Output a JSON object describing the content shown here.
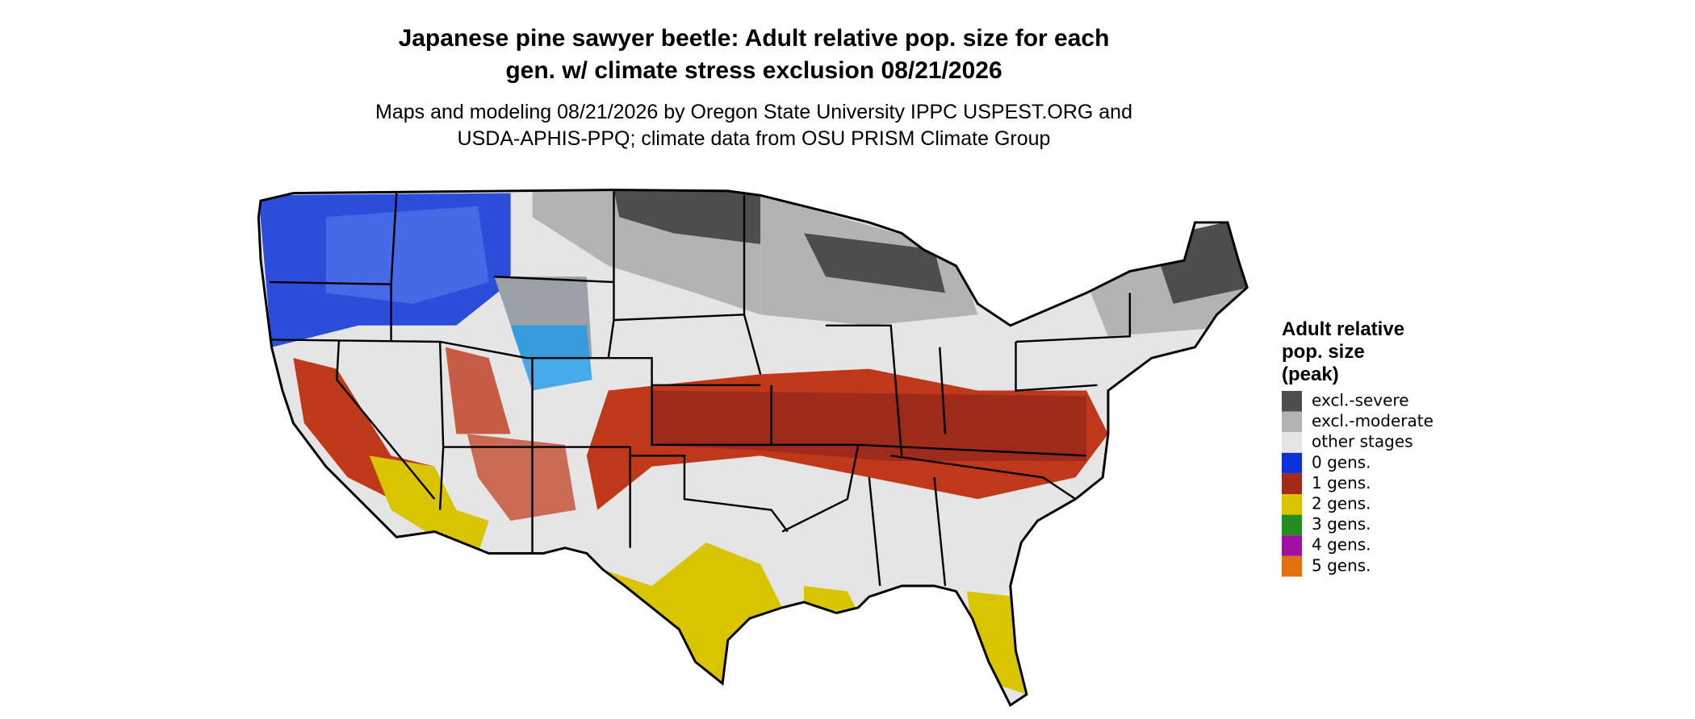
{
  "header": {
    "title_lines": [
      "Japanese pine sawyer beetle: Adult relative pop. size for each",
      "gen. w/ climate stress exclusion 08/21/2026"
    ],
    "subtitle_lines": [
      "Maps and modeling 08/21/2026 by Oregon State University IPPC USPEST.ORG and",
      "USDA-APHIS-PPQ; climate data from OSU PRISM Climate Group"
    ]
  },
  "legend": {
    "title_lines": [
      "Adult relative",
      "pop. size",
      "(peak)"
    ],
    "items": [
      {
        "label": "excl.-severe",
        "color": "#4d4d4d"
      },
      {
        "label": "excl.-moderate",
        "color": "#b3b3b3"
      },
      {
        "label": "other stages",
        "color": "#e5e5e5"
      },
      {
        "label": "0 gens.",
        "color": "#0a32d8"
      },
      {
        "label": "1 gens.",
        "color": "#a52a1a"
      },
      {
        "label": "2 gens.",
        "color": "#d8c400"
      },
      {
        "label": "3 gens.",
        "color": "#228b22"
      },
      {
        "label": "4 gens.",
        "color": "#a010a0"
      },
      {
        "label": "5 gens.",
        "color": "#e07010"
      }
    ]
  }
}
